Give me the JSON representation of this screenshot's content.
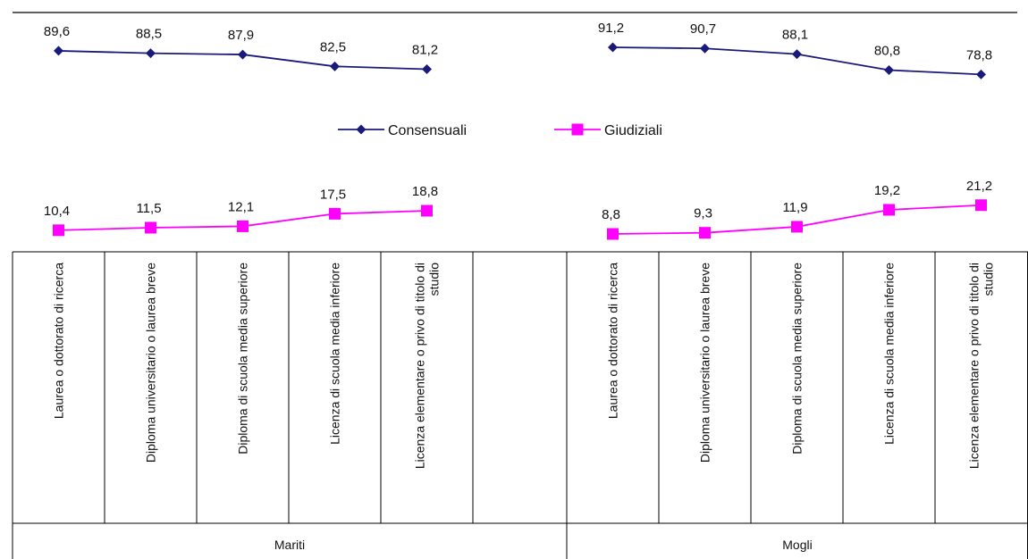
{
  "chart_data": {
    "type": "line",
    "title": "",
    "groups": [
      {
        "name": "Mariti",
        "categories": [
          [
            "Laurea o dottorato di ricerca"
          ],
          [
            "Diploma universitario o laurea breve"
          ],
          [
            "Diploma di scuola media superiore"
          ],
          [
            "Licenza di scuola media inferiore"
          ],
          [
            "Licenza elementare o privo di titolo di",
            "studio"
          ]
        ],
        "series": [
          {
            "name": "Consensuali",
            "values": [
              89.6,
              88.5,
              87.9,
              82.5,
              81.2
            ]
          },
          {
            "name": "Giudiziali",
            "values": [
              10.4,
              11.5,
              12.1,
              17.5,
              18.8
            ]
          }
        ]
      },
      {
        "name": "Mogli",
        "categories": [
          [
            "Laurea o dottorato di ricerca"
          ],
          [
            "Diploma universitario o laurea breve"
          ],
          [
            "Diploma di scuola media superiore"
          ],
          [
            "Licenza di scuola media inferiore"
          ],
          [
            "Licenza elementare o privo di titolo di",
            "studio"
          ]
        ],
        "series": [
          {
            "name": "Consensuali",
            "values": [
              91.2,
              90.7,
              88.1,
              80.8,
              78.8
            ]
          },
          {
            "name": "Giudiziali",
            "values": [
              8.8,
              9.3,
              11.9,
              19.2,
              21.2
            ]
          }
        ]
      }
    ],
    "legend": {
      "position": "center",
      "entries": [
        {
          "name": "Consensuali",
          "color": "#1a1a7a",
          "marker": "diamond"
        },
        {
          "name": "Giudiziali",
          "color": "#ff00ff",
          "marker": "square"
        }
      ]
    },
    "colors": {
      "consensuali": "#1a1a7a",
      "giudiziali": "#ff00ff"
    },
    "decimal_separator": ","
  }
}
